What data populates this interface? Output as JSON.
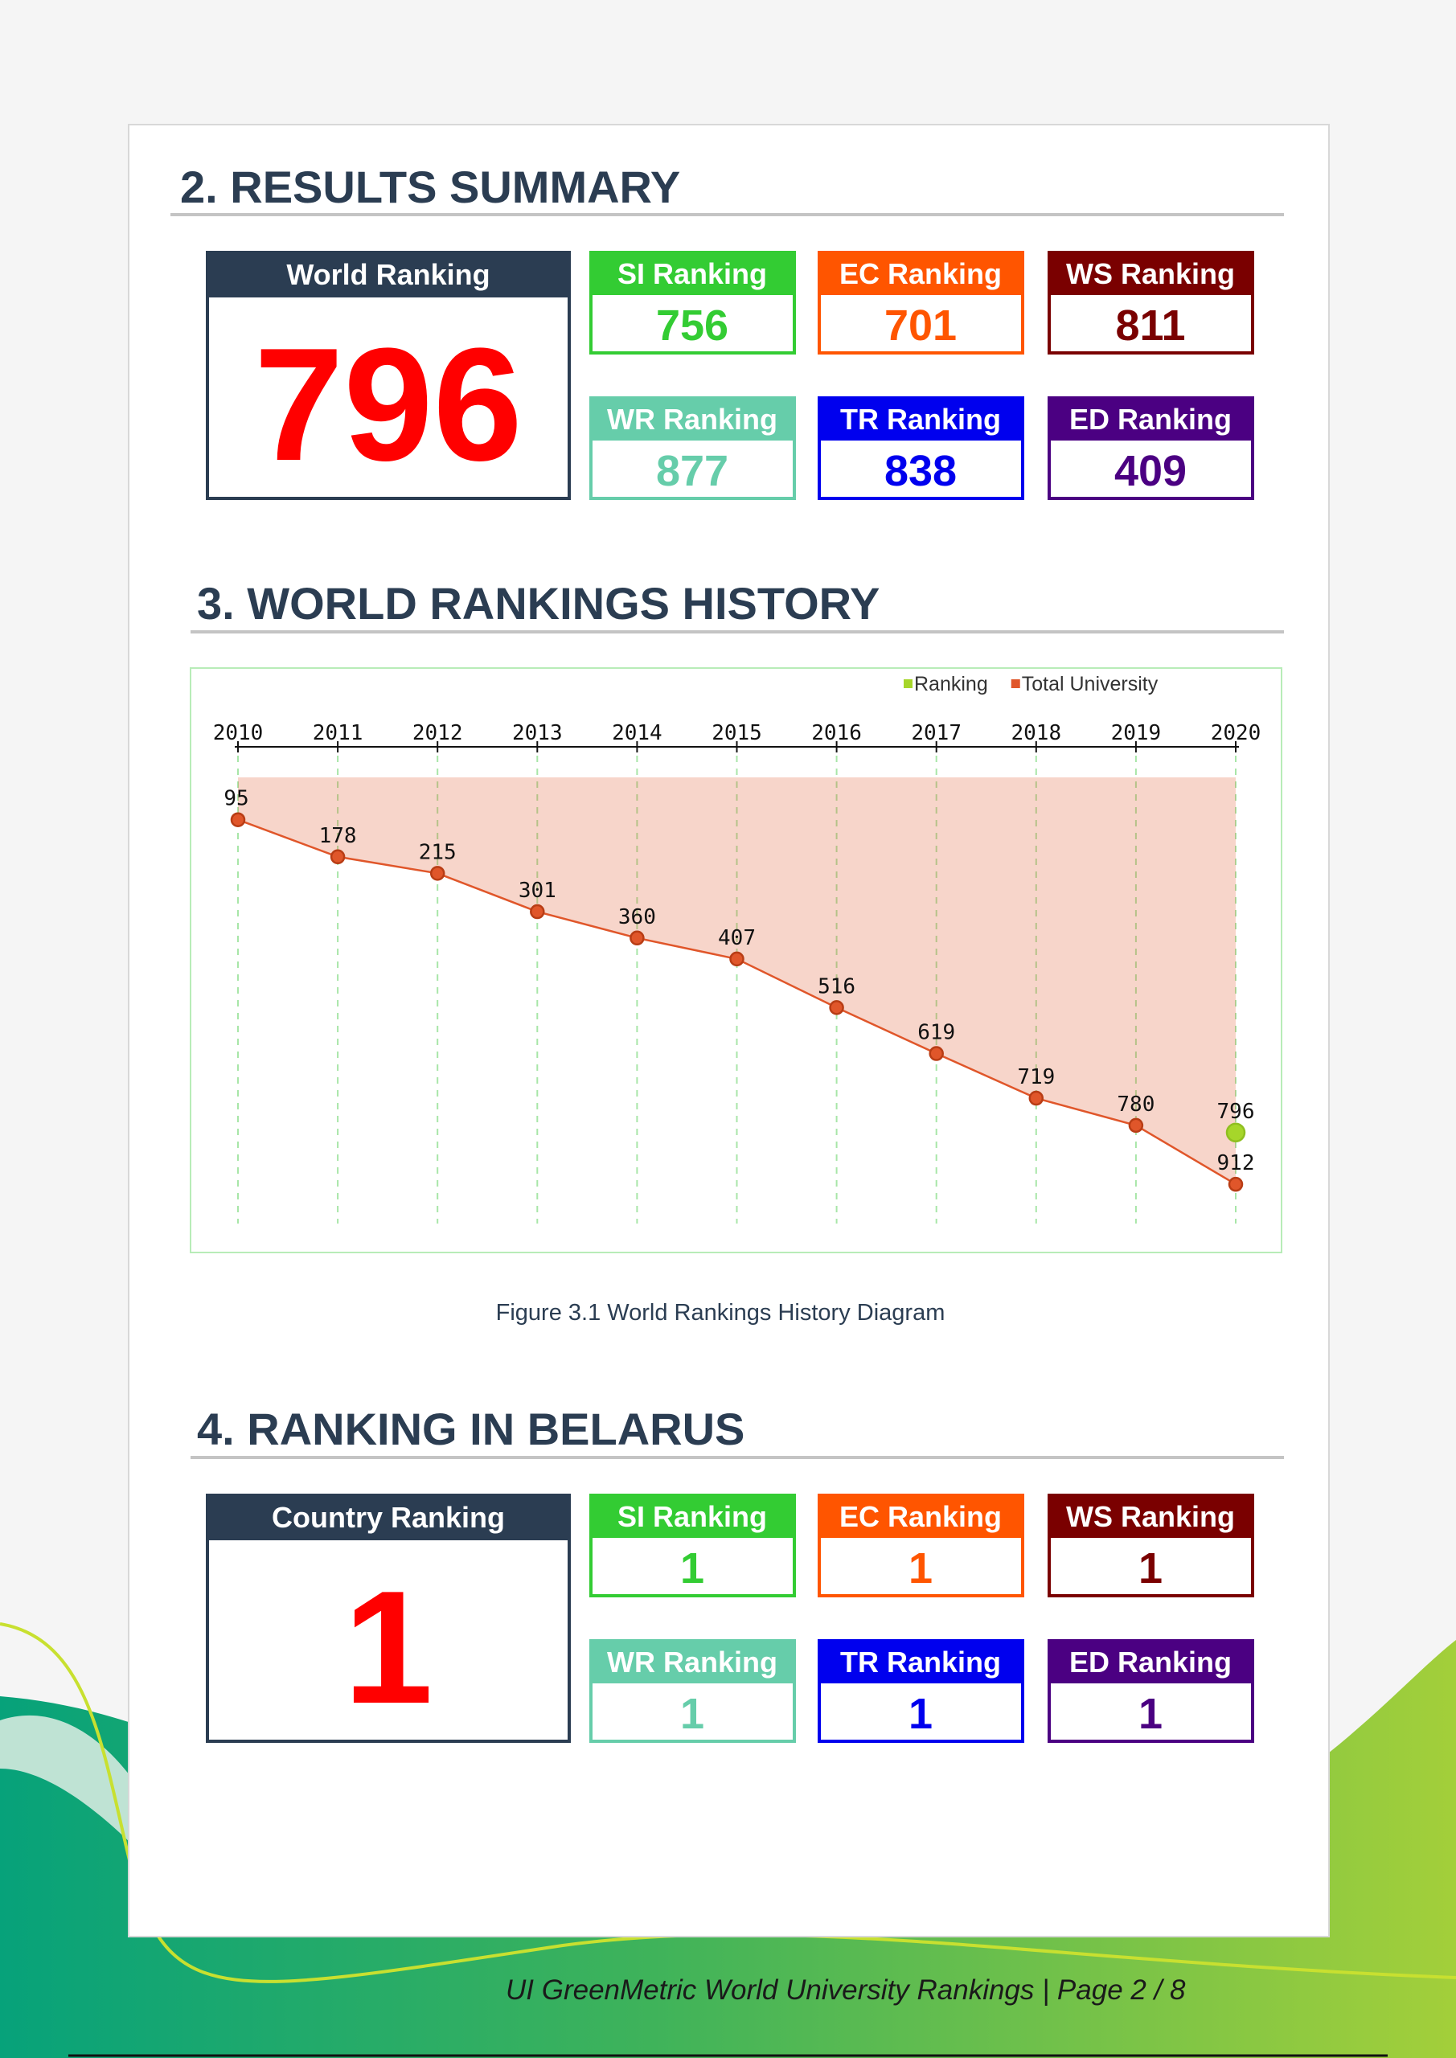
{
  "sections": [
    {
      "heading": "2. RESULTS SUMMARY",
      "main": {
        "label": "World Ranking",
        "value": 796
      },
      "indicators": [
        {
          "label": "SI Ranking",
          "value": 756,
          "color": "#33cc33"
        },
        {
          "label": "EC Ranking",
          "value": 701,
          "color": "#ff5500"
        },
        {
          "label": "WS Ranking",
          "value": 811,
          "color": "#7a0000"
        },
        {
          "label": "WR Ranking",
          "value": 877,
          "color": "#66cdaa"
        },
        {
          "label": "TR Ranking",
          "value": 838,
          "color": "#0000ee"
        },
        {
          "label": "ED Ranking",
          "value": 409,
          "color": "#4b0082"
        }
      ]
    },
    {
      "heading": "3. WORLD RANKINGS HISTORY"
    },
    {
      "heading": "4. RANKING IN BELARUS",
      "main": {
        "label": "Country Ranking",
        "value": 1
      },
      "indicators": [
        {
          "label": "SI Ranking",
          "value": 1,
          "color": "#33cc33"
        },
        {
          "label": "EC Ranking",
          "value": 1,
          "color": "#ff5500"
        },
        {
          "label": "WS Ranking",
          "value": 1,
          "color": "#7a0000"
        },
        {
          "label": "WR Ranking",
          "value": 1,
          "color": "#66cdaa"
        },
        {
          "label": "TR Ranking",
          "value": 1,
          "color": "#0000ee"
        },
        {
          "label": "ED Ranking",
          "value": 1,
          "color": "#4b0082"
        }
      ]
    }
  ],
  "chart_data": {
    "type": "area",
    "categories": [
      "2010",
      "2011",
      "2012",
      "2013",
      "2014",
      "2015",
      "2016",
      "2017",
      "2018",
      "2019",
      "2020"
    ],
    "series": [
      {
        "name": "Ranking",
        "color": "#a6d62a",
        "values": [
          null,
          null,
          null,
          null,
          null,
          null,
          null,
          null,
          null,
          null,
          796
        ]
      },
      {
        "name": "Total University",
        "color": "#e0562a",
        "values": [
          95,
          178,
          215,
          301,
          360,
          407,
          516,
          619,
          719,
          780,
          912
        ]
      }
    ],
    "ylim": [
      0,
      1000
    ],
    "y_inverted": true,
    "grid": true
  },
  "caption": "Figure 3.1 World Rankings History Diagram",
  "footer": "UI GreenMetric World University Rankings | Page 2 / 8"
}
